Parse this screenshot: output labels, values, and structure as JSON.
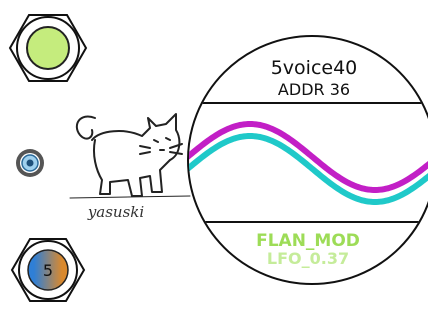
{
  "display": {
    "line1": "5voice40",
    "line2": "ADDR 36",
    "line3": "FLAN_MOD",
    "line4": "LFO_0.37"
  },
  "knob_label": "5",
  "logo": "yasuski"
}
